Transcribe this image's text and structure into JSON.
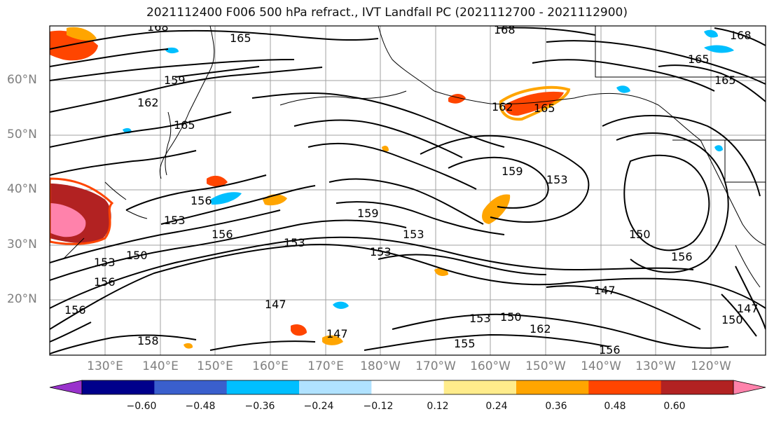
{
  "title": "2021112400 F006 500 hPa refract., IVT Landfall PC (2021112700 - 2021112900)",
  "lat_labels": [
    "60°N",
    "50°N",
    "40°N",
    "30°N",
    "20°N"
  ],
  "lon_labels": [
    "130°E",
    "140°E",
    "150°E",
    "160°E",
    "170°E",
    "180°W",
    "170°W",
    "160°W",
    "150°W",
    "140°W",
    "130°W",
    "120°W"
  ],
  "contour_labels": [
    "168",
    "165",
    "168",
    "168",
    "165",
    "165",
    "159",
    "162",
    "165",
    "162",
    "165",
    "159",
    "153",
    "156",
    "153",
    "156",
    "153",
    "150",
    "153",
    "159",
    "153",
    "153",
    "156",
    "150",
    "156",
    "147",
    "147",
    "156",
    "147",
    "153",
    "150",
    "162",
    "158",
    "155",
    "147",
    "150",
    "156"
  ],
  "colorbar": {
    "ticks": [
      "−0.60",
      "−0.48",
      "−0.36",
      "−0.24",
      "−0.12",
      "0.12",
      "0.24",
      "0.36",
      "0.48",
      "0.60"
    ],
    "colors": [
      "#9932cc",
      "#00008b",
      "#3a5fcd",
      "#00bfff",
      "#b0e2ff",
      "#ffffff",
      "#ffec8b",
      "#ffa500",
      "#ff4500",
      "#b22222",
      "#ff82ab"
    ]
  },
  "colors": {
    "frame": "#000000",
    "grid": "#a0a0a0",
    "axis_text": "#7f7f7f"
  }
}
